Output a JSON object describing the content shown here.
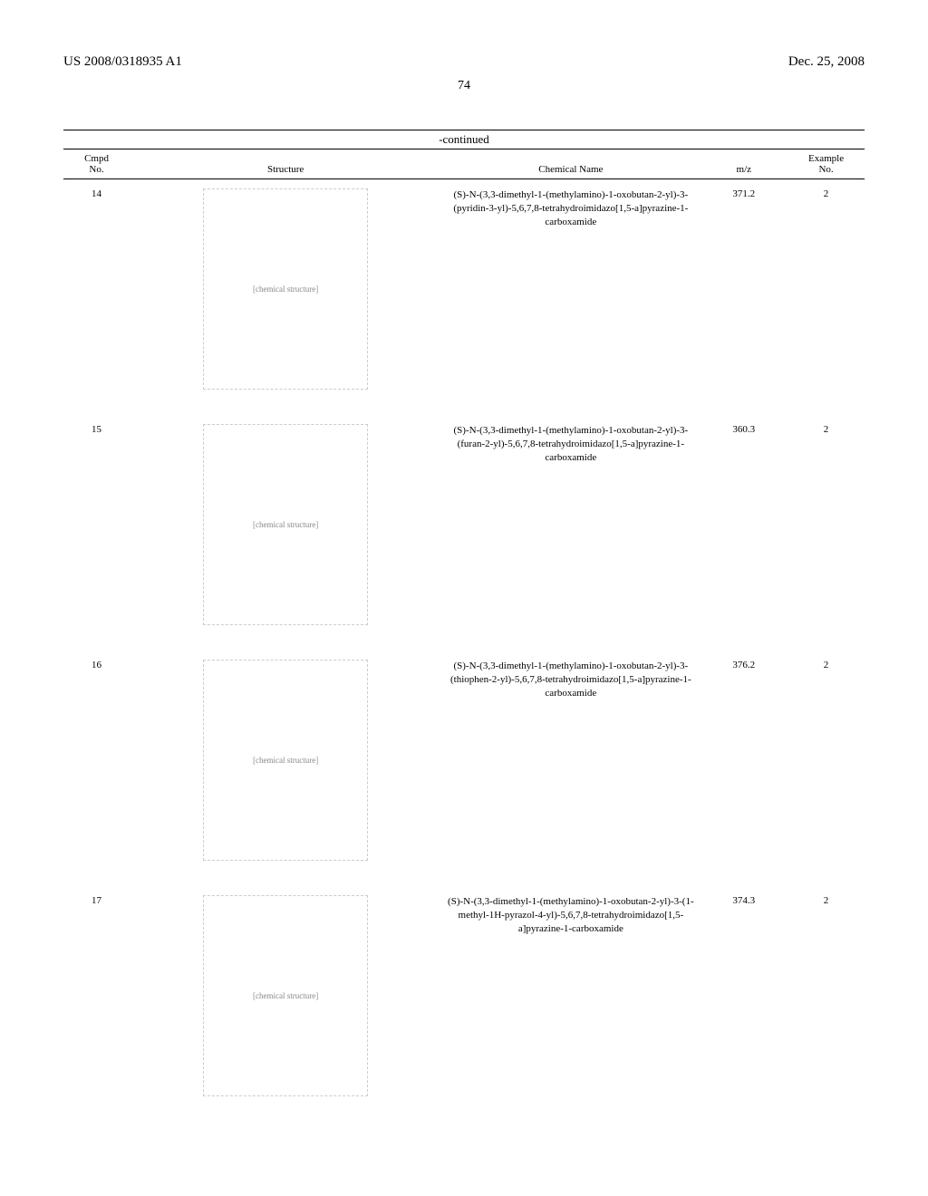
{
  "header": {
    "pub_number": "US 2008/0318935 A1",
    "pub_date": "Dec. 25, 2008"
  },
  "page_number": "74",
  "continued_label": "-continued",
  "columns": {
    "cmpd_line1": "Cmpd",
    "cmpd_line2": "No.",
    "structure": "Structure",
    "chemname": "Chemical Name",
    "mz": "m/z",
    "example_line1": "Example",
    "example_line2": "No."
  },
  "rows": [
    {
      "cmpd": "14",
      "structure_label": "[chemical structure]",
      "chemname": "(S)-N-(3,3-dimethyl-1-(methylamino)-1-oxobutan-2-yl)-3-(pyridin-3-yl)-5,6,7,8-tetrahydroimidazo[1,5-a]pyrazine-1-carboxamide",
      "mz": "371.2",
      "example": "2"
    },
    {
      "cmpd": "15",
      "structure_label": "[chemical structure]",
      "chemname": "(S)-N-(3,3-dimethyl-1-(methylamino)-1-oxobutan-2-yl)-3-(furan-2-yl)-5,6,7,8-tetrahydroimidazo[1,5-a]pyrazine-1-carboxamide",
      "mz": "360.3",
      "example": "2"
    },
    {
      "cmpd": "16",
      "structure_label": "[chemical structure]",
      "chemname": "(S)-N-(3,3-dimethyl-1-(methylamino)-1-oxobutan-2-yl)-3-(thiophen-2-yl)-5,6,7,8-tetrahydroimidazo[1,5-a]pyrazine-1-carboxamide",
      "mz": "376.2",
      "example": "2"
    },
    {
      "cmpd": "17",
      "structure_label": "[chemical structure]",
      "chemname": "(S)-N-(3,3-dimethyl-1-(methylamino)-1-oxobutan-2-yl)-3-(1-methyl-1H-pyrazol-4-yl)-5,6,7,8-tetrahydroimidazo[1,5-a]pyrazine-1-carboxamide",
      "mz": "374.3",
      "example": "2"
    }
  ]
}
